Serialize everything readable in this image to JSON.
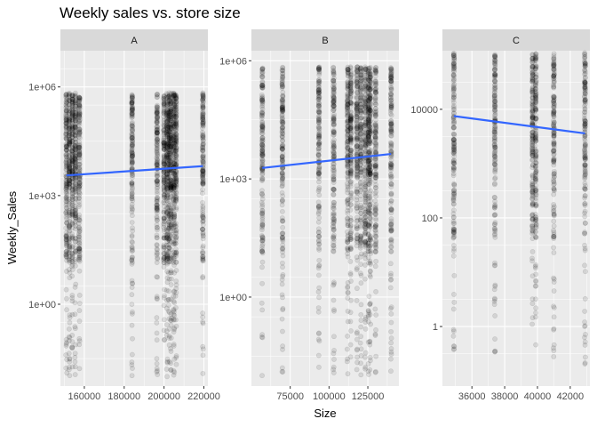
{
  "chart_data": {
    "type": "scatter",
    "title": "Weekly sales vs. store size",
    "xlabel": "Size",
    "ylabel": "Weekly_Sales",
    "y_scale": "log10",
    "facet_by": "Type",
    "panel_background": "#EBEBEB",
    "strip_background": "#D9D9D9",
    "grid": true,
    "point_color": "#000000",
    "point_alpha": 0.1,
    "trend_color": "#3366FF",
    "panels": [
      {
        "facet": "A",
        "xlim": [
          148000,
          222000
        ],
        "ylim": [
          0.0055,
          10000000
        ],
        "x_ticks": [
          160000,
          180000,
          200000,
          220000
        ],
        "x_tick_labels": [
          "160000",
          "180000",
          "200000",
          "220000"
        ],
        "y_ticks": [
          1,
          1000,
          1000000
        ],
        "y_tick_labels": [
          "1e+00",
          "1e+03",
          "1e+06"
        ],
        "store_sizes": [
          151000,
          152500,
          154000,
          155500,
          157500,
          184000,
          196500,
          200000,
          201500,
          202500,
          203500,
          205000,
          206000,
          219500
        ],
        "sales_range": {
          "min": 0.01,
          "max": 700000
        },
        "trend": {
          "x": [
            151000,
            219500
          ],
          "y": [
            3600,
            6500
          ]
        }
      },
      {
        "facet": "B",
        "xlim": [
          50000,
          145000
        ],
        "ylim": [
          0.0055,
          1800000
        ],
        "x_ticks": [
          75000,
          100000,
          125000
        ],
        "x_tick_labels": [
          "75000",
          "100000",
          "125000"
        ],
        "y_ticks": [
          1,
          1000,
          1000000
        ],
        "y_tick_labels": [
          "1e+00",
          "1e+03",
          "1e+06"
        ],
        "store_sizes": [
          57000,
          70000,
          93500,
          103000,
          112000,
          114000,
          118000,
          120500,
          123500,
          125500,
          126500,
          130000,
          140000
        ],
        "sales_range": {
          "min": 0.01,
          "max": 700000
        },
        "trend": {
          "x": [
            57000,
            140000
          ],
          "y": [
            1900,
            4300
          ]
        }
      },
      {
        "facet": "C",
        "xlim": [
          34200,
          43200
        ],
        "ylim": [
          0.08,
          120000
        ],
        "x_ticks": [
          36000,
          38000,
          40000,
          42000
        ],
        "x_tick_labels": [
          "36000",
          "38000",
          "40000",
          "42000"
        ],
        "y_ticks": [
          1,
          100,
          10000
        ],
        "y_tick_labels": [
          "1",
          "100",
          "10000"
        ],
        "store_sizes": [
          34900,
          37400,
          39700,
          39900,
          41000,
          42900
        ],
        "sales_range": {
          "min": 0.2,
          "max": 110000
        },
        "trend": {
          "x": [
            34900,
            42900
          ],
          "y": [
            7500,
            3600
          ]
        }
      }
    ]
  }
}
